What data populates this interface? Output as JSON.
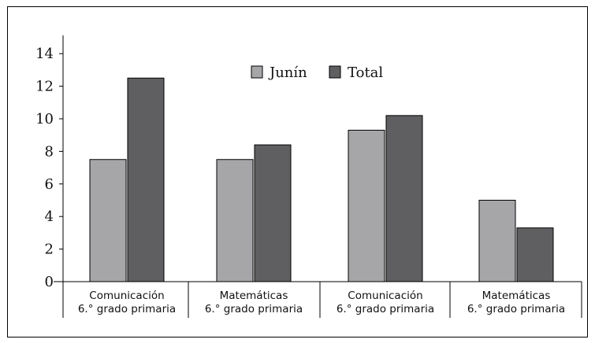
{
  "chart_data": {
    "type": "bar",
    "title": "",
    "xlabel": "",
    "ylabel": "",
    "ylim": [
      0,
      15
    ],
    "yticks": [
      0,
      2,
      4,
      6,
      8,
      10,
      12,
      14
    ],
    "categories": [
      [
        "Comunicación",
        "6.° grado primaria"
      ],
      [
        "Matemáticas",
        "6.° grado primaria"
      ],
      [
        "Comunicación",
        "6.° grado primaria"
      ],
      [
        "Matemáticas",
        "6.° grado primaria"
      ]
    ],
    "series": [
      {
        "name": "Junín",
        "values": [
          7.5,
          7.5,
          9.3,
          5.0
        ],
        "color": "#a6a6a8"
      },
      {
        "name": "Total",
        "values": [
          12.5,
          8.4,
          10.2,
          3.3
        ],
        "color": "#5f5f61"
      }
    ],
    "legend_position": "top-center",
    "grid": false
  }
}
